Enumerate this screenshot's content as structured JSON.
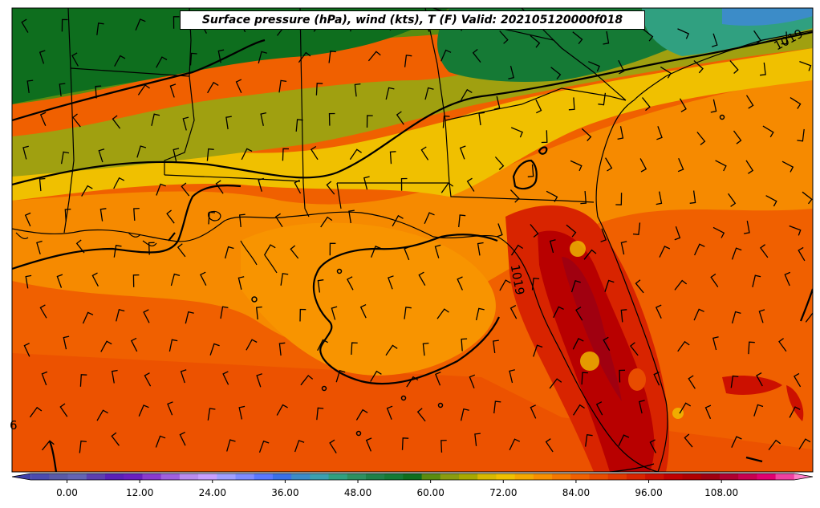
{
  "title": "Surface pressure (hPa), wind (kts), T (F) Valid: 202105120000f018",
  "contour_labels": [
    {
      "text": "1019",
      "id": "ne"
    },
    {
      "text": "1019",
      "id": "center"
    },
    {
      "text": "6",
      "id": "west"
    }
  ],
  "colorbar": {
    "min": -6,
    "max": 120,
    "step": 3,
    "tick_labels": [
      "0.00",
      "12.00",
      "24.00",
      "36.00",
      "48.00",
      "60.00",
      "72.00",
      "84.00",
      "96.00",
      "108.00"
    ],
    "colors": [
      "#3f3fa8",
      "#4b4bb0",
      "#5a5aa8",
      "#6464b4",
      "#5d3fb0",
      "#5a20b8",
      "#6a1fc0",
      "#8a3ad0",
      "#a060e0",
      "#b98cf0",
      "#c8a0ff",
      "#a0a0ff",
      "#7f8cff",
      "#5a78ff",
      "#3a70e8",
      "#3c8cc8",
      "#3ca0b0",
      "#30a080",
      "#2e9060",
      "#208048",
      "#157a35",
      "#0e6e1e",
      "#5a8c10",
      "#8a9c10",
      "#a8a800",
      "#d8b800",
      "#f0c000",
      "#f4a800",
      "#f89000",
      "#f47800",
      "#f06000",
      "#e84c00",
      "#e03800",
      "#d82400",
      "#cc1000",
      "#c00000",
      "#b00000",
      "#a00010",
      "#b00030",
      "#c80050",
      "#e00070",
      "#f040a0",
      "#ff80c8"
    ]
  },
  "colors": {
    "temp_low_green": "#0e6e1e",
    "temp_olive": "#a0a010",
    "temp_yellow": "#f0c000",
    "temp_orange": "#f89000",
    "temp_red": "#e03800",
    "temp_darkred": "#b80000",
    "teal": "#30a080"
  }
}
